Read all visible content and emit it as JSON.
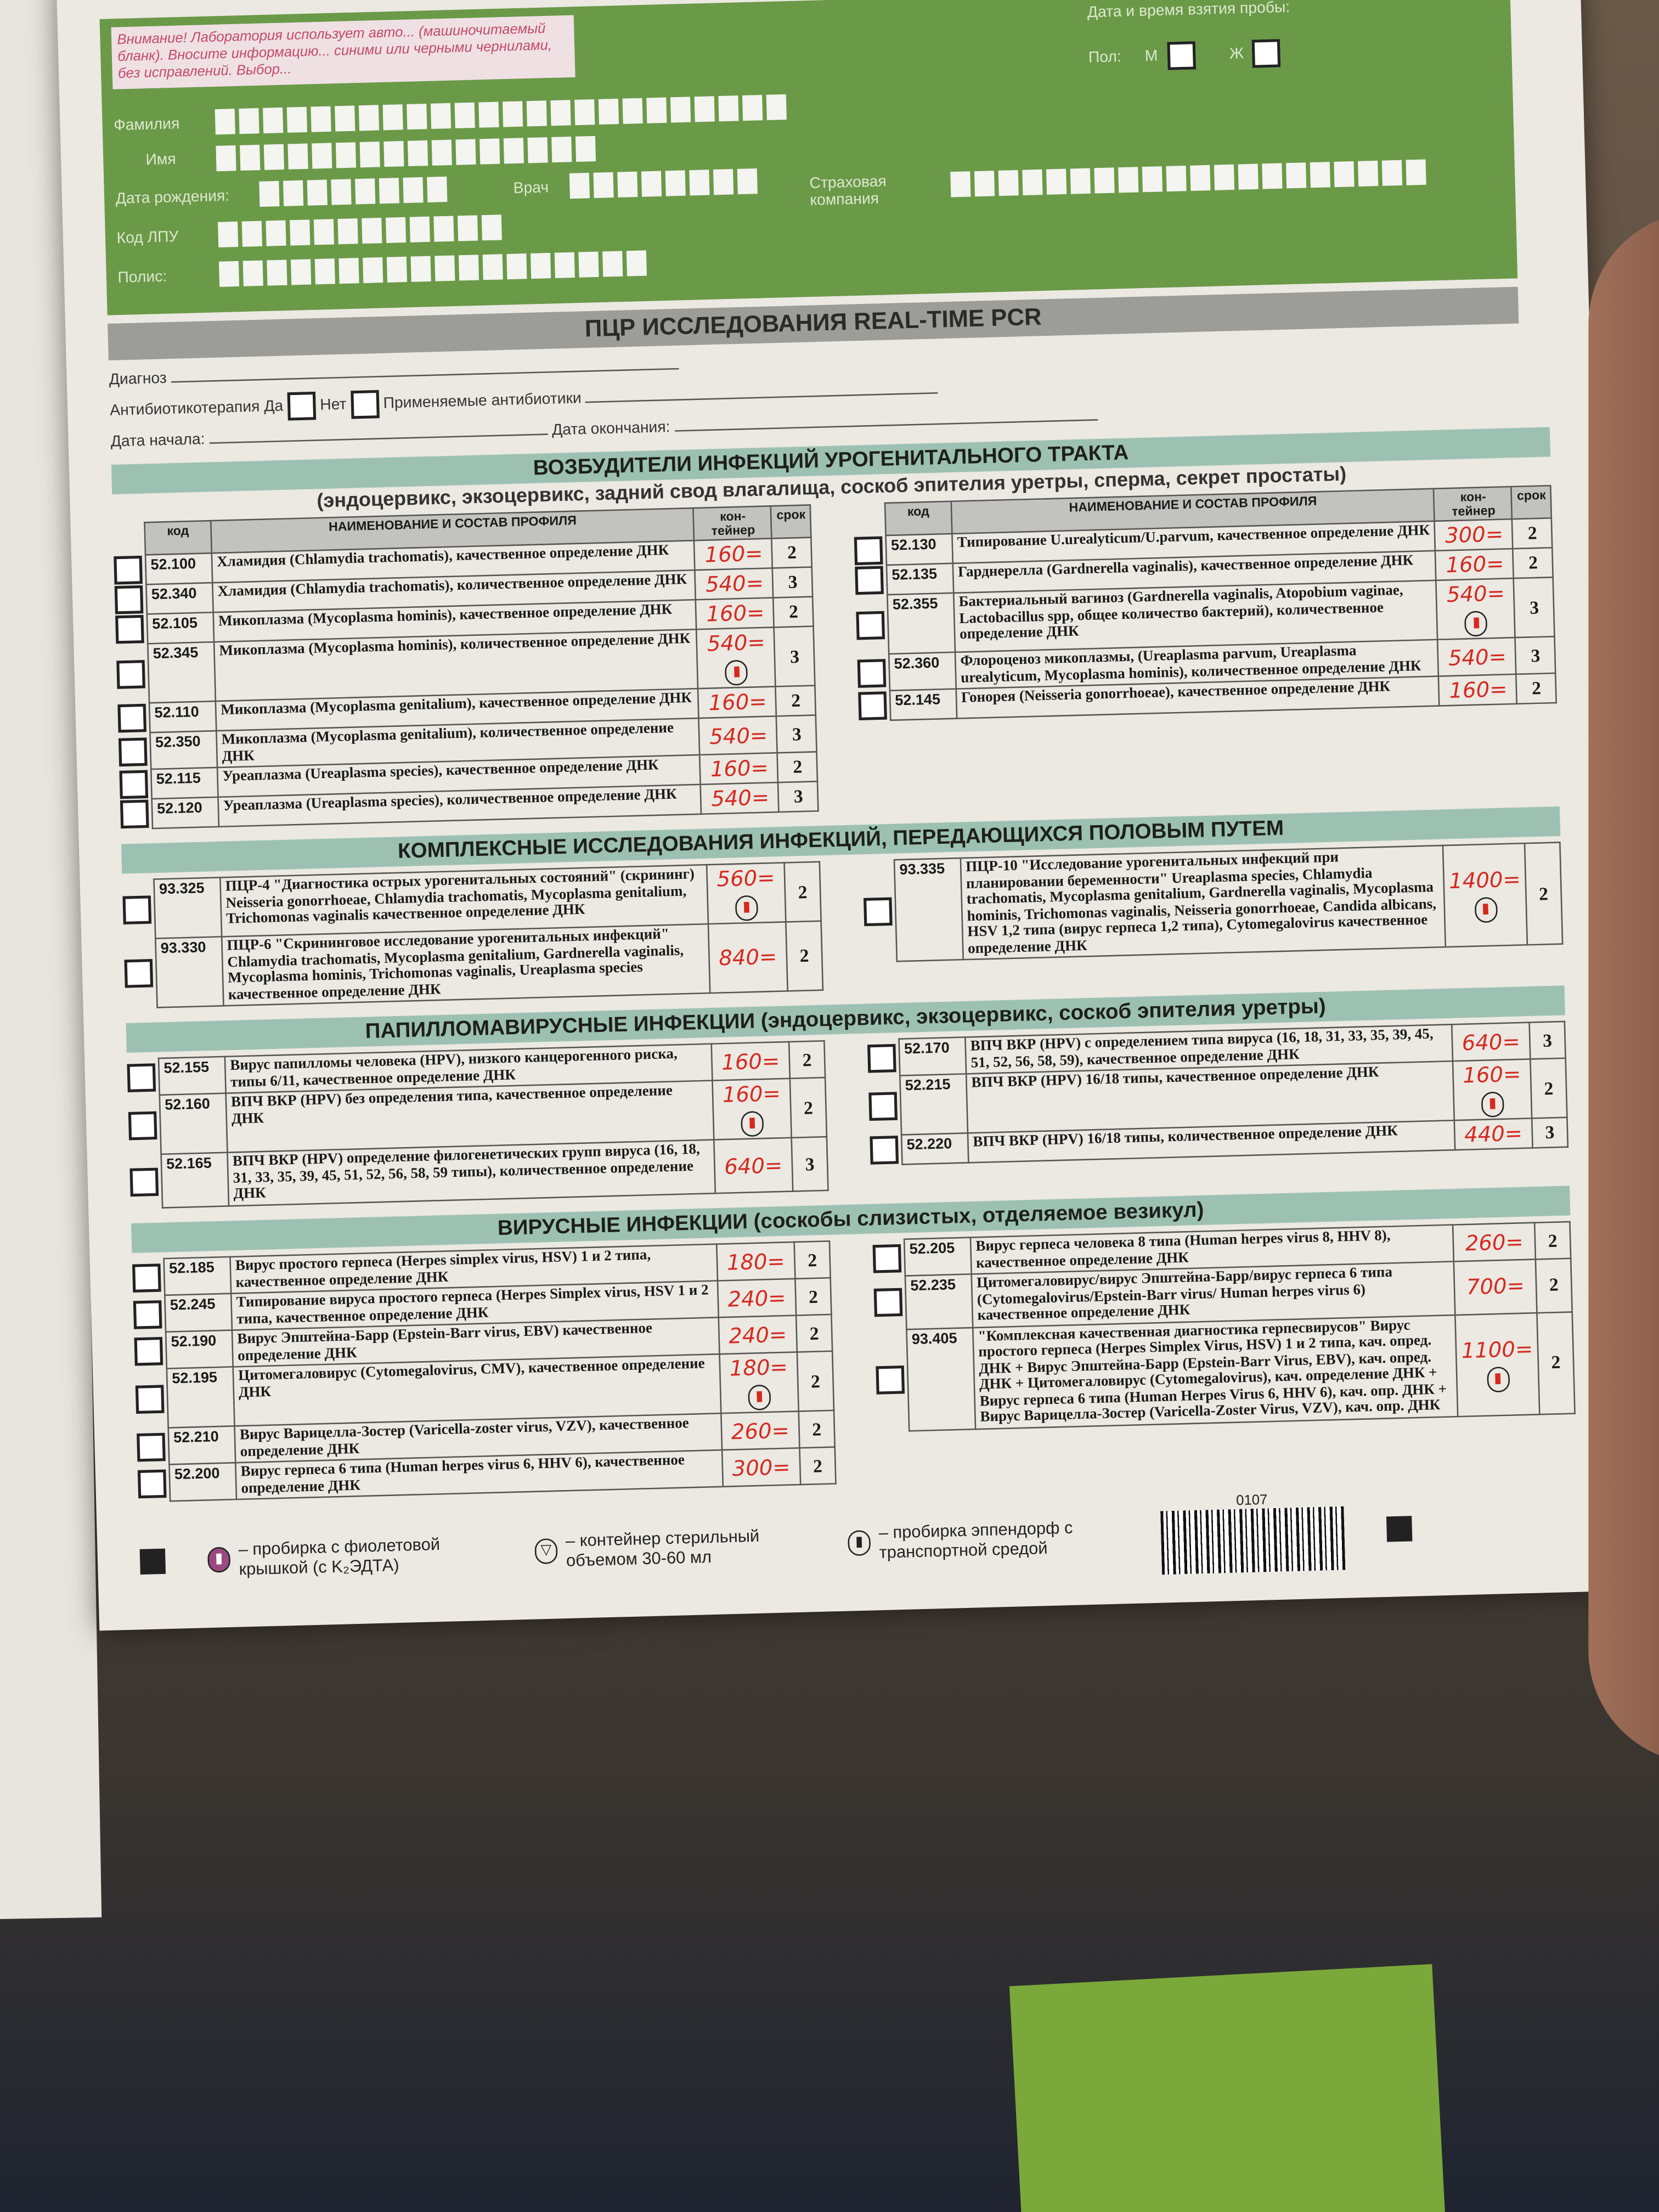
{
  "header": {
    "warning": "Внимание! Лаборатория использует авто... (машиночитаемый бланк). Вносите информацию... синими или черными чернилами, без исправлений. Выбор...",
    "surname": "Фамилия",
    "name": "Имя",
    "birth_date": "Дата рождения:",
    "doctor": "Врач",
    "lpu_code": "Код ЛПУ",
    "policy": "Полис:",
    "insurance": "Страховая компания",
    "sample_datetime": "Дата и время взятия пробы:",
    "sex": "Пол:",
    "male": "М",
    "female": "Ж"
  },
  "title": "ПЦР ИССЛЕДОВАНИЯ  REAL-TIME PCR",
  "info": {
    "diagnosis": "Диагноз",
    "antibiotic_therapy": "Антибиотикотерапия",
    "yes": "Да",
    "no": "Нет",
    "antibiotics_used": "Применяемые антибиотики",
    "start_date": "Дата начала:",
    "end_date": "Дата окончания:"
  },
  "columns": {
    "code": "код",
    "name": "НАИМЕНОВАНИЕ И СОСТАВ ПРОФИЛЯ",
    "container": "кон-тейнер",
    "term": "срок"
  },
  "sections": [
    {
      "title": "ВОЗБУДИТЕЛИ ИНФЕКЦИЙ УРОГЕНИТАЛЬНОГО ТРАКТА",
      "subtitle": "(эндоцервикс, экзоцервикс, задний свод влагалища, соскоб эпителия уретры, сперма, секрет простаты)",
      "headers": true,
      "left": [
        {
          "code": "52.100",
          "name": "Хламидия (Chlamydia trachomatis), качественное определение ДНК",
          "price": "160=",
          "term": "2"
        },
        {
          "code": "52.340",
          "name": "Хламидия (Chlamydia trachomatis), количественное определение ДНК",
          "price": "540=",
          "term": "3"
        },
        {
          "code": "52.105",
          "name": "Микоплазма (Mycoplasma hominis), качественное определение ДНК",
          "price": "160=",
          "term": "2"
        },
        {
          "code": "52.345",
          "name": "Микоплазма (Mycoplasma hominis), количественное определение ДНК",
          "price": "540=",
          "term": "3",
          "tube": true
        },
        {
          "code": "52.110",
          "name": "Микоплазма (Mycoplasma genitalium), качественное определение ДНК",
          "price": "160=",
          "term": "2"
        },
        {
          "code": "52.350",
          "name": "Микоплазма (Mycoplasma genitalium), количественное определение ДНК",
          "price": "540=",
          "term": "3"
        },
        {
          "code": "52.115",
          "name": "Уреаплазма (Ureaplasma species), качественное определение ДНК",
          "price": "160=",
          "term": "2"
        },
        {
          "code": "52.120",
          "name": "Уреаплазма (Ureaplasma species), количественное определение ДНК",
          "price": "540=",
          "term": "3"
        }
      ],
      "right": [
        {
          "code": "52.130",
          "name": "Типирование U.urealyticum/U.parvum, качественное определение ДНК",
          "price": "300=",
          "term": "2"
        },
        {
          "code": "52.135",
          "name": "Гарднерелла (Gardnerella vaginalis), качественное определение ДНК",
          "price": "160=",
          "term": "2"
        },
        {
          "code": "52.355",
          "name": "Бактериальный вагиноз (Gardnerella vaginalis, Atopobium vaginae, Lactobacillus spp, общее количество бактерий), количественное определение ДНК",
          "price": "540=",
          "term": "3",
          "tube": true
        },
        {
          "code": "52.360",
          "name": "Флороценоз микоплазмы, (Ureaplasma parvum, Ureaplasma urealyticum, Mycoplasma hominis), количественное определение ДНК",
          "price": "540=",
          "term": "3"
        },
        {
          "code": "52.145",
          "name": "Гонорея (Neisseria gonorrhoeae), качественное определение ДНК",
          "price": "160=",
          "term": "2"
        }
      ]
    },
    {
      "title": "КОМПЛЕКСНЫЕ ИССЛЕДОВАНИЯ ИНФЕКЦИЙ, ПЕРЕДАЮЩИХСЯ ПОЛОВЫМ ПУТЕМ",
      "subtitle": "",
      "headers": false,
      "left": [
        {
          "code": "93.325",
          "name": "ПЦР-4 \"Диагностика острых урогенитальных состояний\" (скрининг) Neisseria gonorrhoeae, Chlamydia trachomatis, Mycoplasma genitalium, Trichomonas vaginalis качественное определение ДНК",
          "price": "560=",
          "term": "2",
          "tube": true
        },
        {
          "code": "93.330",
          "name": "ПЦР-6 \"Скрининговое исследование урогенитальных инфекций\" Chlamydia trachomatis, Mycoplasma genitalium, Gardnerella vaginalis, Mycoplasma hominis, Trichomonas vaginalis, Ureaplasma species качественное определение ДНК",
          "price": "840=",
          "term": "2"
        }
      ],
      "right": [
        {
          "code": "93.335",
          "name": "ПЦР-10 \"Исследование урогенитальных инфекций при планировании беременности\" Ureaplasma species, Chlamydia trachomatis, Mycoplasma genitalium, Gardnerella vaginalis, Mycoplasma hominis, Trichomonas vaginalis, Neisseria gonorrhoeae, Candida albicans, HSV 1,2 типа (вирус герпеса 1,2 типа), Cytomegalovirus качественное определение ДНК",
          "price": "1400=",
          "term": "2",
          "tube": true
        }
      ]
    },
    {
      "title": "ПАПИЛЛОМАВИРУСНЫЕ ИНФЕКЦИИ (эндоцервикс, экзоцервикс, соскоб эпителия уретры)",
      "subtitle": "",
      "headers": false,
      "left": [
        {
          "code": "52.155",
          "name": "Вирус папилломы человека (HPV), низкого канцерогенного риска, типы 6/11, качественное определение ДНК",
          "price": "160=",
          "term": "2"
        },
        {
          "code": "52.160",
          "name": "ВПЧ ВКР (HPV) без определения типа, качественное определение ДНК",
          "price": "160=",
          "term": "2",
          "tube": true
        },
        {
          "code": "52.165",
          "name": "ВПЧ ВКР (HPV) определение филогенетических групп вируса (16, 18, 31, 33, 35, 39, 45, 51, 52, 56, 58, 59 типы), количественное определение ДНК",
          "price": "640=",
          "term": "3"
        }
      ],
      "right": [
        {
          "code": "52.170",
          "name": "ВПЧ ВКР (HPV) с определением типа вируса (16, 18, 31, 33, 35, 39, 45, 51, 52, 56, 58, 59), качественное определение ДНК",
          "price": "640=",
          "term": "3"
        },
        {
          "code": "52.215",
          "name": "ВПЧ ВКР (HPV) 16/18 типы, качественное определение ДНК",
          "price": "160=",
          "term": "2",
          "tube": true
        },
        {
          "code": "52.220",
          "name": "ВПЧ ВКР (HPV) 16/18 типы, количественное определение ДНК",
          "price": "440=",
          "term": "3"
        }
      ]
    },
    {
      "title": "ВИРУСНЫЕ ИНФЕКЦИИ (соскобы слизистых, отделяемое везикул)",
      "subtitle": "",
      "headers": false,
      "left": [
        {
          "code": "52.185",
          "name": "Вирус простого герпеса (Herpes simplex virus, HSV) 1 и 2 типа, качественное определение ДНК",
          "price": "180=",
          "term": "2"
        },
        {
          "code": "52.245",
          "name": "Типирование вируса простого герпеса (Herpes Simplex virus, HSV 1 и 2 типа, качественное определение ДНК",
          "price": "240=",
          "term": "2"
        },
        {
          "code": "52.190",
          "name": "Вирус Эпштейна-Барр (Epstein-Barr virus, EBV) качественное определение ДНК",
          "price": "240=",
          "term": "2"
        },
        {
          "code": "52.195",
          "name": "Цитомегаловирус (Cytomegalovirus, CMV), качественное определение ДНК",
          "price": "180=",
          "term": "2",
          "tube": true
        },
        {
          "code": "52.210",
          "name": "Вирус Варицелла-Зостер (Varicella-zoster virus, VZV), качественное определение ДНК",
          "price": "260=",
          "term": "2"
        },
        {
          "code": "52.200",
          "name": "Вирус герпеса 6 типа (Human herpes virus 6, HHV 6), качественное определение ДНК",
          "price": "300=",
          "term": "2"
        }
      ],
      "right": [
        {
          "code": "52.205",
          "name": "Вирус герпеса человека 8 типа (Human herpes virus 8, HHV 8), качественное определение ДНК",
          "price": "260=",
          "term": "2"
        },
        {
          "code": "52.235",
          "name": "Цитомегаловирус/вирус Эпштейна-Барр/вирус герпеса 6 типа (Cytomegalovirus/Epstein-Barr virus/ Human herpes virus 6) качественное определение ДНК",
          "price": "700=",
          "term": "2"
        },
        {
          "code": "93.405",
          "name": "\"Комплексная качественная диагностика герпесвирусов\" Вирус простого герпеса (Herpes Simplex Virus, HSV) 1 и 2 типа, кач. опред. ДНК + Вирус Эпштейна-Барр (Epstein-Barr Virus, EBV), кач. опред. ДНК + Цитомегаловирус (Cytomegalovirus), кач. определение ДНК + Вирус герпеса 6 типа (Human Herpes Virus 6, HHV 6), кач. опр. ДНК + Вирус Варицелла-Зостер (Varicella-Zoster Virus, VZV), кач. опр. ДНК",
          "price": "1100=",
          "term": "2",
          "tube": true
        }
      ]
    }
  ],
  "legend": {
    "purple_tube": "– пробирка с фиолетовой крышкой (с K₂ЭДТА)",
    "sterile_container": "– контейнер стерильный объемом 30-60 мл",
    "eppendorf": "– пробирка эппендорф с транспортной средой",
    "form_number": "0107"
  },
  "colors": {
    "header_green": "#6a9a48",
    "section_band": "#9cc1b3",
    "handwritten_price": "#d42a20"
  }
}
